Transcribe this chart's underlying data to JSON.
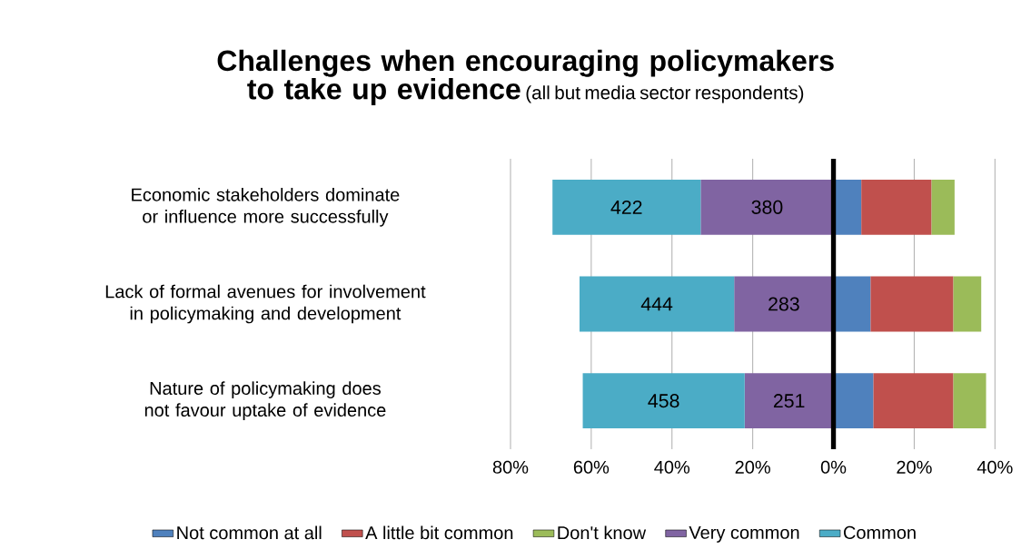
{
  "chart_data": {
    "type": "bar",
    "orientation": "horizontal",
    "stacked": true,
    "title": "Challenges when encouraging policymakers to take up evidence",
    "subtitle": "(all but media sector respondents)",
    "categories": [
      "Economic stakeholders dominate or influence more successfully",
      "Lack of formal avenues for involvement in policymaking and development",
      "Nature of policymaking does not favour uptake of evidence"
    ],
    "series": [
      {
        "name": "Not common at all",
        "color": "#4f81bd",
        "values": [
          6.9,
          9.2,
          9.9
        ]
      },
      {
        "name": "A little bit common",
        "color": "#c0504d",
        "values": [
          17.4,
          20.5,
          19.8
        ]
      },
      {
        "name": "Don't know",
        "color": "#9bbb59",
        "values": [
          5.7,
          6.9,
          8.1
        ]
      },
      {
        "name": "Very common",
        "color": "#8064a2",
        "values": [
          -32.9,
          -24.6,
          -22.0
        ]
      },
      {
        "name": "Common",
        "color": "#4bacc6",
        "values": [
          -36.7,
          -38.3,
          -40.1
        ]
      }
    ],
    "annotations": [
      "380",
      "283",
      "251",
      "422",
      "444",
      "458"
    ],
    "xlim": [
      -80,
      40
    ],
    "xticks": [
      {
        "value": -80,
        "label": "80%"
      },
      {
        "value": -60,
        "label": "60%"
      },
      {
        "value": -40,
        "label": "40%"
      },
      {
        "value": -20,
        "label": "20%"
      },
      {
        "value": 0,
        "label": "0%"
      },
      {
        "value": 20,
        "label": "20%"
      },
      {
        "value": 40,
        "label": "40%"
      }
    ],
    "ref_lines": [
      {
        "axis": "x",
        "value": 0,
        "color": "#000000"
      }
    ],
    "grid": "x",
    "legend": "bottom"
  }
}
